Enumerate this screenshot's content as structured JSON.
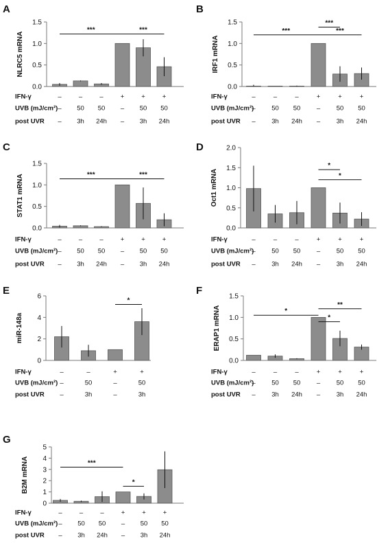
{
  "chart_data": [
    {
      "id": "A",
      "type": "bar",
      "ylabel": "NLRC5 mRNA",
      "ylim": [
        0,
        1.5
      ],
      "yticks": [
        0,
        0.5,
        1.0,
        1.5
      ],
      "ytick_labels": [
        "0.0",
        "0.5",
        "1.0",
        "1.5"
      ],
      "values": [
        0.05,
        0.13,
        0.06,
        1.0,
        0.9,
        0.46
      ],
      "errors": [
        0.03,
        0.01,
        0.02,
        0.0,
        0.2,
        0.22
      ],
      "rows": [
        {
          "label": "IFN-γ",
          "cells": [
            "–",
            "–",
            "–",
            "+",
            "+",
            "+"
          ]
        },
        {
          "label": "UVB (mJ/cm²)",
          "cells": [
            "–",
            "50",
            "50",
            "–",
            "50",
            "50"
          ]
        },
        {
          "label": "post UVR",
          "cells": [
            "–",
            "3h",
            "24h",
            "–",
            "3h",
            "24h"
          ]
        }
      ],
      "significance": [
        {
          "text": "***",
          "from": 0,
          "to": 3,
          "y": 1.22
        },
        {
          "text": "***",
          "from": 3,
          "to": 5,
          "y": 1.22
        }
      ]
    },
    {
      "id": "B",
      "type": "bar",
      "ylabel": "IRF1 mRNA",
      "ylim": [
        0,
        1.5
      ],
      "yticks": [
        0,
        0.5,
        1.0,
        1.5
      ],
      "ytick_labels": [
        "0.0",
        "0.5",
        "1.0",
        "1.5"
      ],
      "values": [
        0.01,
        0.01,
        0.01,
        1.0,
        0.29,
        0.3
      ],
      "errors": [
        0.03,
        0.0,
        0.01,
        0.0,
        0.18,
        0.14
      ],
      "rows": [
        {
          "label": "IFN-γ",
          "cells": [
            "–",
            "–",
            "–",
            "+",
            "+",
            "+"
          ]
        },
        {
          "label": "UVB (mJ/cm²)",
          "cells": [
            "–",
            "50",
            "50",
            "–",
            "50",
            "50"
          ]
        },
        {
          "label": "post UVR",
          "cells": [
            "–",
            "3h",
            "24h",
            "–",
            "3h",
            "24h"
          ]
        }
      ],
      "significance": [
        {
          "text": "***",
          "from": 0,
          "to": 3,
          "y": 1.2
        },
        {
          "text": "***",
          "from": 3,
          "to": 4,
          "y": 1.38
        },
        {
          "text": "***",
          "from": 3,
          "to": 5,
          "y": 1.2
        }
      ]
    },
    {
      "id": "C",
      "type": "bar",
      "ylabel": "STAT1 mRNA",
      "ylim": [
        0,
        1.5
      ],
      "yticks": [
        0,
        0.5,
        1.0,
        1.5
      ],
      "ytick_labels": [
        "0.0",
        "0.5",
        "1.0",
        "1.5"
      ],
      "values": [
        0.04,
        0.05,
        0.03,
        1.0,
        0.57,
        0.19
      ],
      "errors": [
        0.03,
        0.01,
        0.01,
        0.0,
        0.37,
        0.15
      ],
      "rows": [
        {
          "label": "IFN-γ",
          "cells": [
            "–",
            "–",
            "–",
            "+",
            "+",
            "+"
          ]
        },
        {
          "label": "UVB (mJ/cm²)",
          "cells": [
            "–",
            "50",
            "50",
            "–",
            "50",
            "50"
          ]
        },
        {
          "label": "post UVR",
          "cells": [
            "–",
            "3h",
            "24h",
            "–",
            "3h",
            "24h"
          ]
        }
      ],
      "significance": [
        {
          "text": "***",
          "from": 0,
          "to": 3,
          "y": 1.14
        },
        {
          "text": "***",
          "from": 3,
          "to": 5,
          "y": 1.14
        }
      ]
    },
    {
      "id": "D",
      "type": "bar",
      "ylabel": "Oct1 mRNA",
      "ylim": [
        0,
        2.0
      ],
      "yticks": [
        0,
        0.5,
        1.0,
        1.5,
        2.0
      ],
      "ytick_labels": [
        "0.0",
        "0.5",
        "1.0",
        "1.5",
        "2.0"
      ],
      "values": [
        0.98,
        0.35,
        0.38,
        1.0,
        0.37,
        0.22
      ],
      "errors": [
        0.57,
        0.22,
        0.29,
        0.0,
        0.26,
        0.17
      ],
      "rows": [
        {
          "label": "IFN-γ",
          "cells": [
            "–",
            "–",
            "–",
            "+",
            "+",
            "+"
          ]
        },
        {
          "label": "UVB (mJ/cm²)",
          "cells": [
            "–",
            "50",
            "50",
            "–",
            "50",
            "50"
          ]
        },
        {
          "label": "post UVR",
          "cells": [
            "–",
            "3h",
            "24h",
            "–",
            "3h",
            "24h"
          ]
        }
      ],
      "significance": [
        {
          "text": "*",
          "from": 3,
          "to": 4,
          "y": 1.45
        },
        {
          "text": "*",
          "from": 3,
          "to": 5,
          "y": 1.2
        }
      ]
    },
    {
      "id": "E",
      "type": "bar",
      "ylabel": "miR-148a",
      "ylim": [
        0,
        6
      ],
      "yticks": [
        0,
        2,
        4,
        6
      ],
      "ytick_labels": [
        "0",
        "2",
        "4",
        "6"
      ],
      "values": [
        2.2,
        0.9,
        1.0,
        3.6
      ],
      "errors": [
        1.0,
        0.55,
        0.0,
        1.25
      ],
      "rows": [
        {
          "label": "IFN-γ",
          "cells": [
            "–",
            "–",
            "+",
            "+"
          ]
        },
        {
          "label": "UVB (mJ/cm²)",
          "cells": [
            "–",
            "50",
            "–",
            "50"
          ]
        },
        {
          "label": "post UVR",
          "cells": [
            "–",
            "3h",
            "–",
            "3h"
          ]
        }
      ],
      "significance": [
        {
          "text": "*",
          "from": 2,
          "to": 3,
          "y": 5.2
        }
      ]
    },
    {
      "id": "F",
      "type": "bar",
      "ylabel": "ERAP1 mRNA",
      "ylim": [
        0,
        1.5
      ],
      "yticks": [
        0,
        0.5,
        1.0,
        1.5
      ],
      "ytick_labels": [
        "0.0",
        "0.5",
        "1.0",
        "1.5"
      ],
      "values": [
        0.12,
        0.1,
        0.04,
        1.0,
        0.51,
        0.31
      ],
      "errors": [
        0.0,
        0.04,
        0.01,
        0.0,
        0.18,
        0.06
      ],
      "rows": [
        {
          "label": "IFN-γ",
          "cells": [
            "–",
            "–",
            "–",
            "+",
            "+",
            "+"
          ]
        },
        {
          "label": "UVB (mJ/cm²)",
          "cells": [
            "–",
            "50",
            "50",
            "–",
            "50",
            "50"
          ]
        },
        {
          "label": "post UVR",
          "cells": [
            "–",
            "3h",
            "24h",
            "–",
            "3h",
            "24h"
          ]
        }
      ],
      "significance": [
        {
          "text": "*",
          "from": 0,
          "to": 3,
          "y": 1.05
        },
        {
          "text": "*",
          "from": 3,
          "to": 4,
          "y": 0.9
        },
        {
          "text": "**",
          "from": 3,
          "to": 5,
          "y": 1.2
        }
      ]
    },
    {
      "id": "G",
      "type": "bar",
      "ylabel": "B2M mRNA",
      "ylim": [
        0,
        5
      ],
      "yticks": [
        0,
        1,
        2,
        3,
        4,
        5
      ],
      "ytick_labels": [
        "0",
        "1",
        "2",
        "3",
        "4",
        "5"
      ],
      "values": [
        0.25,
        0.17,
        0.58,
        1.0,
        0.6,
        2.97
      ],
      "errors": [
        0.12,
        0.06,
        0.47,
        0.0,
        0.27,
        1.63
      ],
      "rows": [
        {
          "label": "IFN-γ",
          "cells": [
            "–",
            "–",
            "–",
            "+",
            "+",
            "+"
          ]
        },
        {
          "label": "UVB (mJ/cm²)",
          "cells": [
            "–",
            "50",
            "50",
            "–",
            "50",
            "50"
          ]
        },
        {
          "label": "post UVR",
          "cells": [
            "–",
            "3h",
            "24h",
            "–",
            "3h",
            "24h"
          ]
        }
      ],
      "significance": [
        {
          "text": "***",
          "from": 0,
          "to": 3,
          "y": 3.2
        },
        {
          "text": "*",
          "from": 3,
          "to": 4,
          "y": 1.5
        }
      ]
    }
  ]
}
